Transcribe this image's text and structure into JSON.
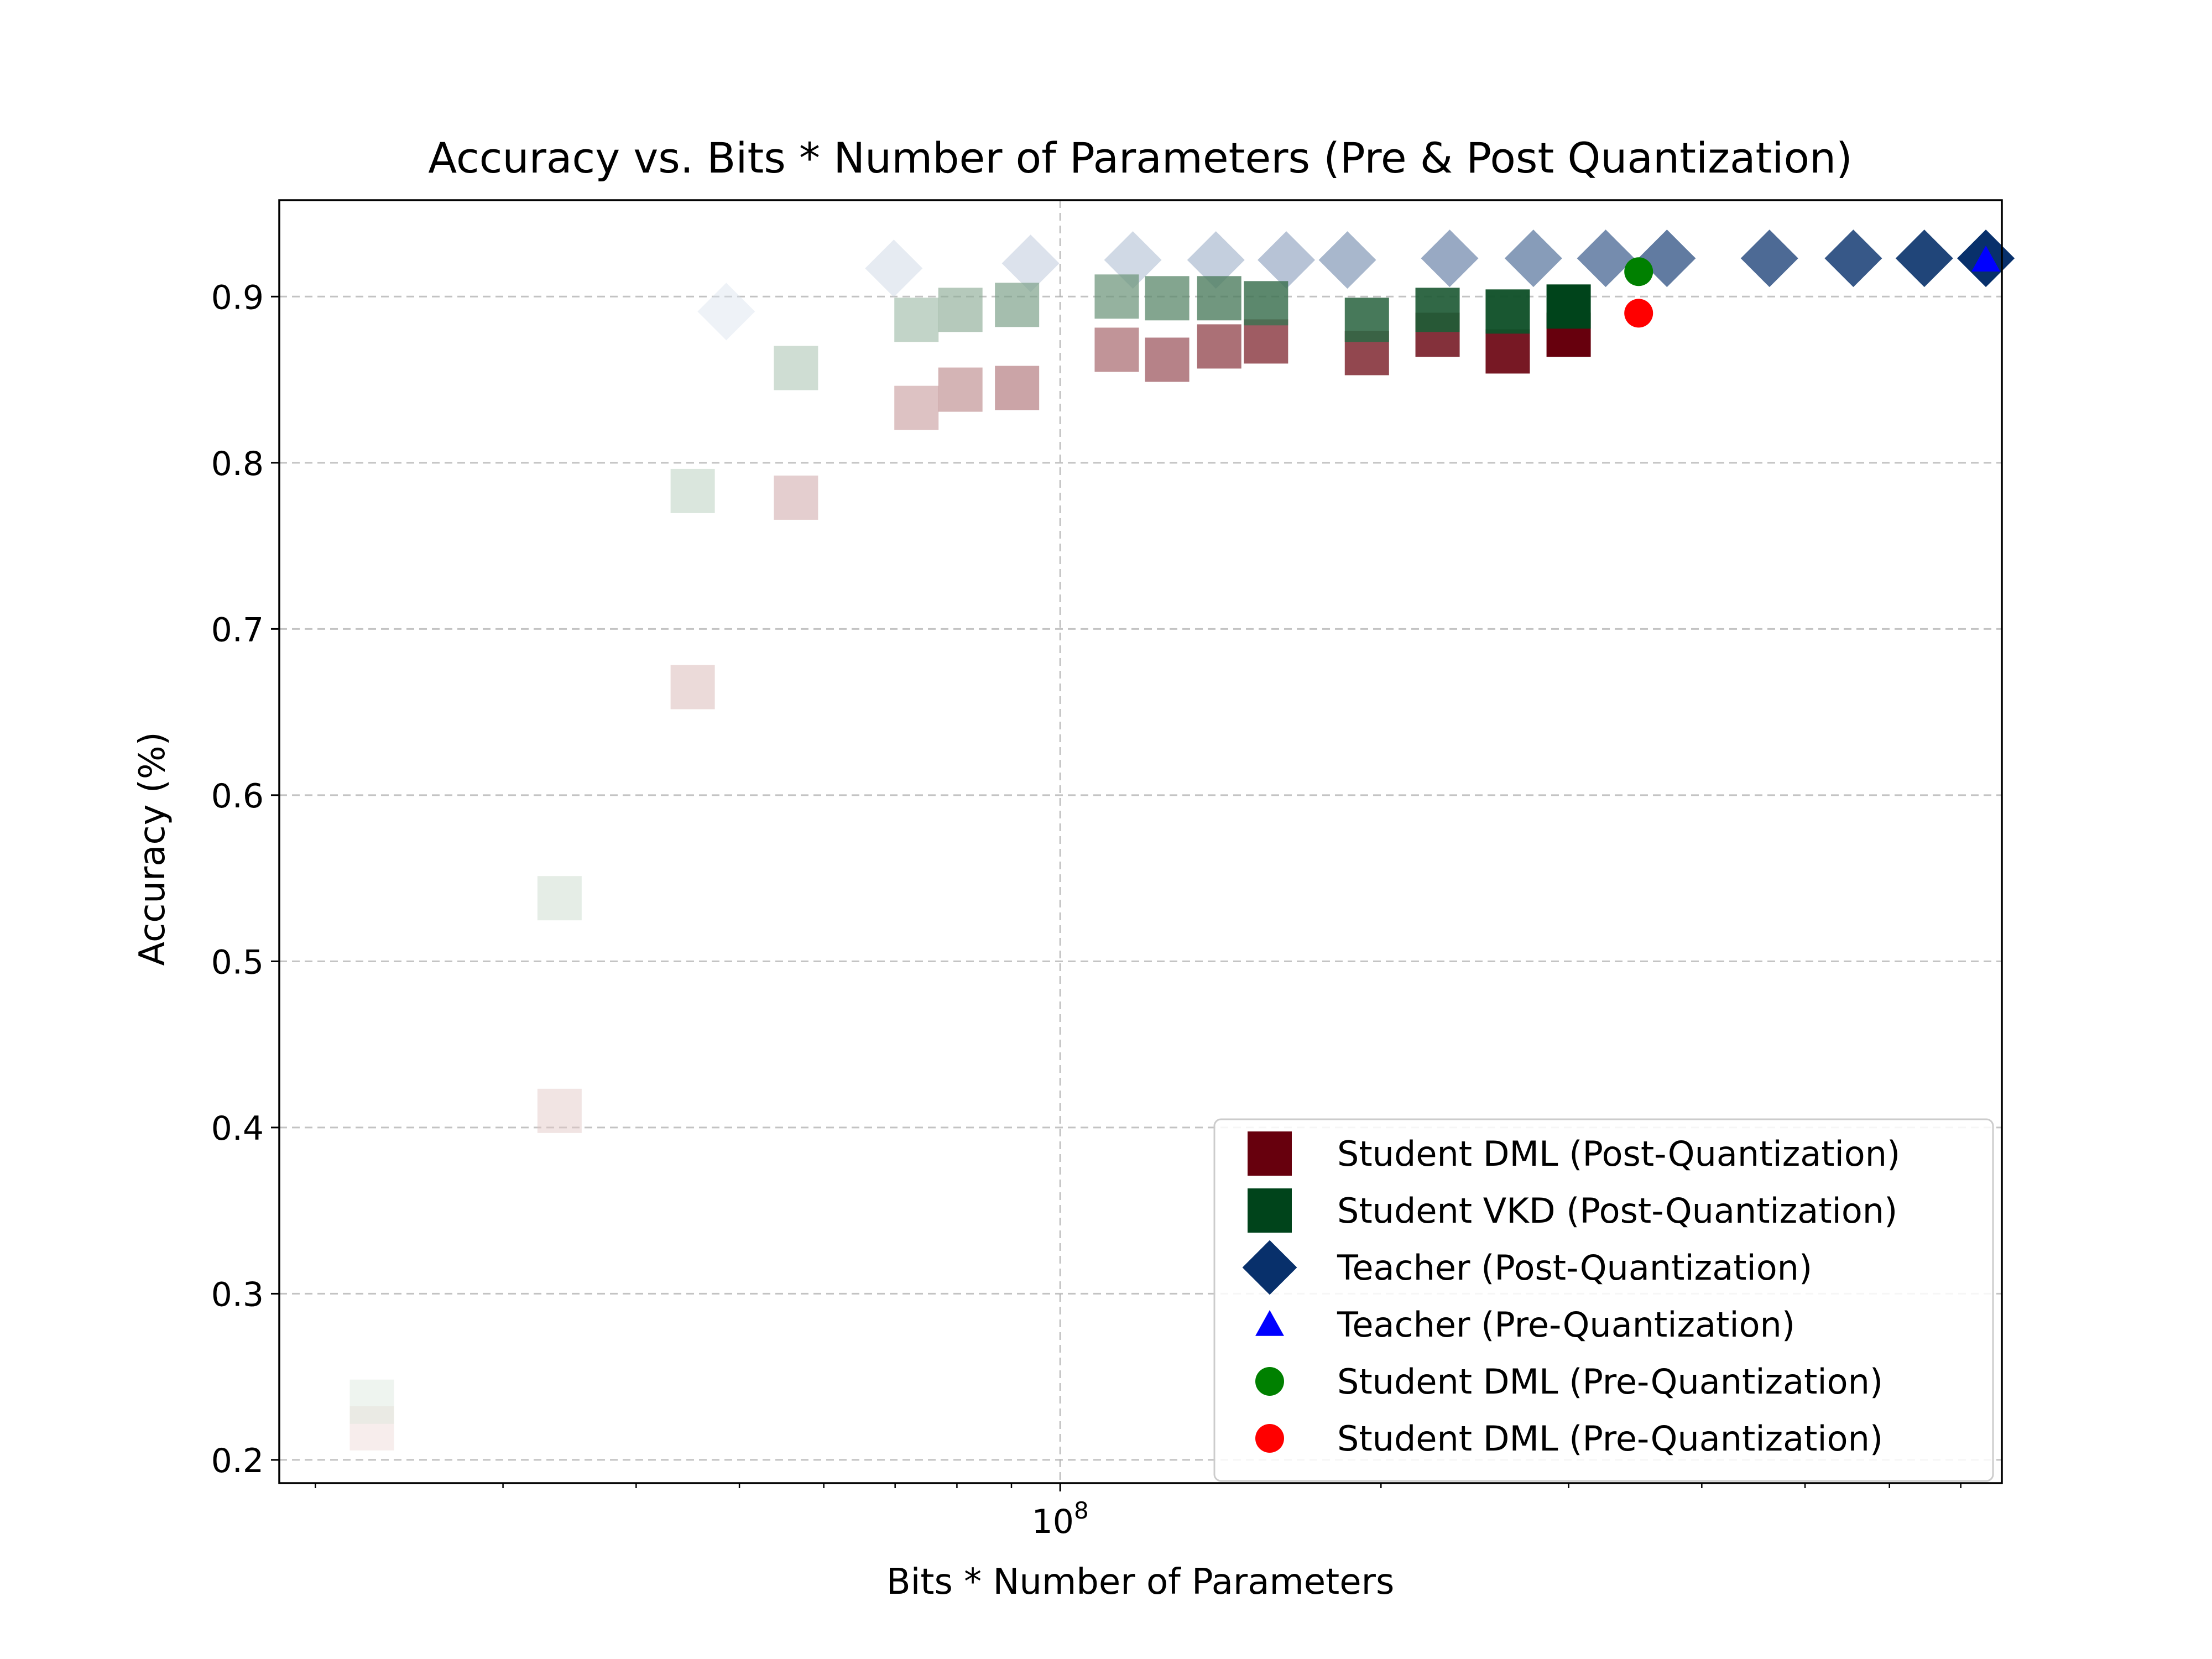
{
  "chart_data": {
    "type": "scatter",
    "title": "Accuracy vs. Bits * Number of Parameters (Pre & Post Quantization)",
    "xlabel": "Bits * Number of Parameters",
    "ylabel": "Accuracy (%)",
    "xscale": "log",
    "xlim": [
      18500000,
      765000000
    ],
    "ylim": [
      0.186,
      0.958
    ],
    "grid": true,
    "legend_position": "lower-right",
    "x_tick_label": "10^8",
    "yticks": [
      "0.2",
      "0.3",
      "0.4",
      "0.5",
      "0.6",
      "0.7",
      "0.8",
      "0.9"
    ],
    "series": [
      {
        "name": "Student DML (Post-Quantization)",
        "marker": "square",
        "color_light": "#fff5f0",
        "color_dark": "#67000d",
        "points": [
          {
            "x": 22600000,
            "y": 0.219
          },
          {
            "x": 33900000,
            "y": 0.41
          },
          {
            "x": 45200000,
            "y": 0.665
          },
          {
            "x": 56500000,
            "y": 0.779
          },
          {
            "x": 73300000,
            "y": 0.833
          },
          {
            "x": 80600000,
            "y": 0.844
          },
          {
            "x": 91100000,
            "y": 0.845
          },
          {
            "x": 113000000,
            "y": 0.868
          },
          {
            "x": 126000000,
            "y": 0.862
          },
          {
            "x": 141000000,
            "y": 0.87
          },
          {
            "x": 156000000,
            "y": 0.873
          },
          {
            "x": 194000000,
            "y": 0.866
          },
          {
            "x": 226000000,
            "y": 0.877
          },
          {
            "x": 263000000,
            "y": 0.867
          },
          {
            "x": 300000000,
            "y": 0.877
          }
        ]
      },
      {
        "name": "Student VKD (Post-Quantization)",
        "marker": "square",
        "color_light": "#f7fcf5",
        "color_dark": "#00441b",
        "points": [
          {
            "x": 22600000,
            "y": 0.235
          },
          {
            "x": 33900000,
            "y": 0.538
          },
          {
            "x": 45200000,
            "y": 0.783
          },
          {
            "x": 56500000,
            "y": 0.857
          },
          {
            "x": 73300000,
            "y": 0.886
          },
          {
            "x": 80600000,
            "y": 0.892
          },
          {
            "x": 91100000,
            "y": 0.895
          },
          {
            "x": 113000000,
            "y": 0.9
          },
          {
            "x": 126000000,
            "y": 0.899
          },
          {
            "x": 141000000,
            "y": 0.899
          },
          {
            "x": 156000000,
            "y": 0.896
          },
          {
            "x": 194000000,
            "y": 0.886
          },
          {
            "x": 226000000,
            "y": 0.892
          },
          {
            "x": 263000000,
            "y": 0.891
          },
          {
            "x": 300000000,
            "y": 0.894
          }
        ]
      },
      {
        "name": "Teacher (Post-Quantization)",
        "marker": "diamond",
        "color_light": "#f7fbff",
        "color_dark": "#08306b",
        "points": [
          {
            "x": 48600000,
            "y": 0.891
          },
          {
            "x": 69800000,
            "y": 0.917
          },
          {
            "x": 93800000,
            "y": 0.92
          },
          {
            "x": 117000000,
            "y": 0.922
          },
          {
            "x": 140000000,
            "y": 0.922
          },
          {
            "x": 163000000,
            "y": 0.922
          },
          {
            "x": 186000000,
            "y": 0.922
          },
          {
            "x": 232000000,
            "y": 0.923
          },
          {
            "x": 278000000,
            "y": 0.923
          },
          {
            "x": 325000000,
            "y": 0.923
          },
          {
            "x": 371000000,
            "y": 0.923
          },
          {
            "x": 463000000,
            "y": 0.923
          },
          {
            "x": 555000000,
            "y": 0.923
          },
          {
            "x": 647000000,
            "y": 0.923
          },
          {
            "x": 739000000,
            "y": 0.923
          }
        ]
      },
      {
        "name": "Teacher (Pre-Quantization)",
        "marker": "triangle",
        "color": "#0000ff",
        "points": [
          {
            "x": 739000000,
            "y": 0.922
          }
        ]
      },
      {
        "name": "Student DML (Pre-Quantization)",
        "marker": "circle",
        "color": "#008000",
        "points": [
          {
            "x": 349000000,
            "y": 0.915
          }
        ]
      },
      {
        "name": "Student DML (Pre-Quantization)",
        "marker": "circle",
        "color": "#ff0000",
        "points": [
          {
            "x": 349000000,
            "y": 0.89
          }
        ]
      }
    ]
  }
}
